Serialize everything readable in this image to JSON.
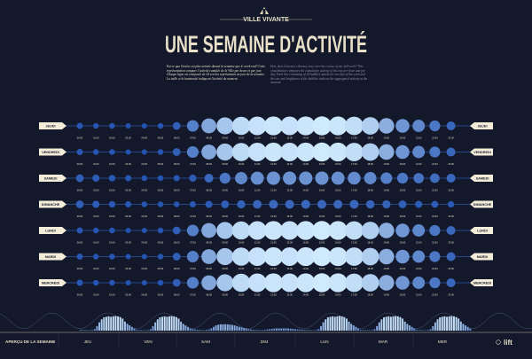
{
  "header": {
    "kicker": "VILLE VIVANTE",
    "title": "UNE SEMAINE D'ACTIVITÉ",
    "intro_fr": "Est-ce que Genève est plus animée durant la semaine que le week-end? Cette représentation compare l'activité cumulée de la Ville par heure et par jour. Chaque ligne est composée de 24 cercles représentant un jour de la semaine. La taille et la luminosité indiquent l'activité du moment.",
    "intro_en": "How does Geneva's vibrancy vary over the course of one full week? This visualization compares the cumulative activity of the city per hour and per day. Each line consisting of 24 bubbles stands for one day of the week and the size and brightness of the bubbles indicate the aggregated activity at the moment."
  },
  "chart_data": {
    "type": "bubble-matrix",
    "rows": [
      "JEUDI",
      "VENDREDI",
      "SAMEDI",
      "DIMANCHE",
      "LUNDI",
      "MARDI",
      "MERCREDI"
    ],
    "hours": [
      "00:00",
      "01:00",
      "02:00",
      "03:00",
      "04:00",
      "05:00",
      "06:00",
      "07:00",
      "08:00",
      "09:00",
      "10:00",
      "11:00",
      "12:00",
      "13:00",
      "14:00",
      "15:00",
      "16:00",
      "17:00",
      "18:00",
      "19:00",
      "20:00",
      "21:00",
      "22:00",
      "23:00"
    ],
    "activity_scale": [
      0,
      1
    ],
    "values": [
      [
        0.05,
        0.04,
        0.04,
        0.03,
        0.03,
        0.04,
        0.1,
        0.3,
        0.55,
        0.75,
        0.88,
        0.92,
        0.95,
        0.92,
        0.95,
        0.97,
        0.95,
        0.9,
        0.8,
        0.6,
        0.45,
        0.35,
        0.25,
        0.15
      ],
      [
        0.05,
        0.04,
        0.04,
        0.03,
        0.03,
        0.04,
        0.1,
        0.3,
        0.55,
        0.75,
        0.88,
        0.92,
        0.95,
        0.92,
        0.95,
        0.97,
        0.95,
        0.9,
        0.8,
        0.6,
        0.45,
        0.35,
        0.25,
        0.15
      ],
      [
        0.1,
        0.08,
        0.06,
        0.05,
        0.04,
        0.04,
        0.05,
        0.08,
        0.15,
        0.25,
        0.35,
        0.4,
        0.42,
        0.42,
        0.42,
        0.42,
        0.4,
        0.38,
        0.35,
        0.3,
        0.25,
        0.22,
        0.18,
        0.15
      ],
      [
        0.1,
        0.08,
        0.06,
        0.05,
        0.04,
        0.04,
        0.04,
        0.05,
        0.08,
        0.1,
        0.12,
        0.14,
        0.15,
        0.15,
        0.15,
        0.15,
        0.15,
        0.15,
        0.13,
        0.12,
        0.1,
        0.08,
        0.07,
        0.06
      ],
      [
        0.05,
        0.04,
        0.04,
        0.03,
        0.03,
        0.04,
        0.1,
        0.3,
        0.55,
        0.75,
        0.88,
        0.92,
        0.95,
        0.92,
        0.95,
        0.97,
        0.95,
        0.9,
        0.8,
        0.6,
        0.45,
        0.35,
        0.25,
        0.15
      ],
      [
        0.05,
        0.04,
        0.04,
        0.03,
        0.03,
        0.04,
        0.1,
        0.3,
        0.55,
        0.75,
        0.88,
        0.92,
        0.95,
        0.92,
        0.95,
        0.97,
        0.95,
        0.9,
        0.8,
        0.6,
        0.45,
        0.35,
        0.25,
        0.15
      ],
      [
        0.05,
        0.04,
        0.04,
        0.03,
        0.03,
        0.04,
        0.1,
        0.3,
        0.55,
        0.75,
        0.88,
        0.92,
        0.95,
        0.92,
        0.95,
        0.97,
        0.95,
        0.9,
        0.8,
        0.6,
        0.45,
        0.35,
        0.25,
        0.15
      ]
    ],
    "colors": {
      "low": "#1f4fb0",
      "high": "#d4eeff",
      "line": "#2a56a8",
      "label_bg": "#f2ecd8",
      "label_text": "#1a1f33",
      "text": "#e8e0c8"
    },
    "overview": {
      "label": "APERÇU DE LA SEMAINE",
      "days": [
        "JEU",
        "VEN",
        "SAM",
        "DIM",
        "LUN",
        "MAR",
        "MER"
      ]
    }
  },
  "logo": {
    "text": "lift"
  }
}
